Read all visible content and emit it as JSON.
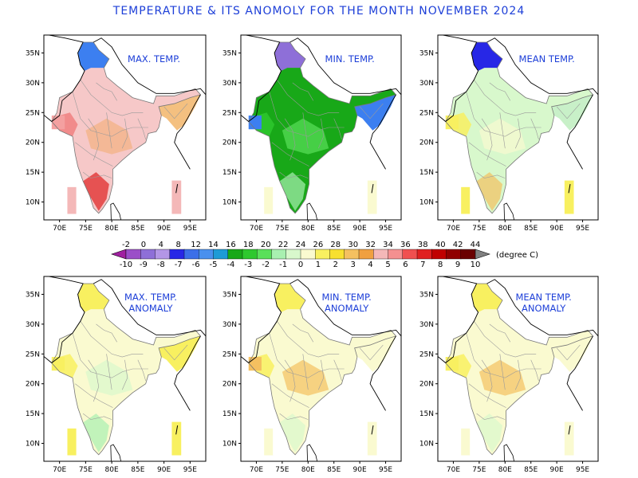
{
  "title": "TEMPERATURE & ITS ANOMOLY FOR THE MONTH NOVEMBER 2024",
  "colorbar": {
    "top_labels": [
      "-2",
      "0",
      "4",
      "8",
      "12",
      "14",
      "16",
      "18",
      "20",
      "22",
      "24",
      "26",
      "28",
      "30",
      "32",
      "34",
      "36",
      "38",
      "40",
      "42",
      "44"
    ],
    "bottom_labels": [
      "-10",
      "-9",
      "-8",
      "-7",
      "-6",
      "-5",
      "-4",
      "-3",
      "-2",
      "-1",
      "0",
      "1",
      "2",
      "3",
      "4",
      "5",
      "6",
      "7",
      "8",
      "9",
      "10"
    ],
    "unit": "(degree C)",
    "colors": [
      "#a020a0",
      "#9b4fc8",
      "#8e6fd8",
      "#b396e6",
      "#2727e6",
      "#3c6fe8",
      "#4a90ee",
      "#1e9bd6",
      "#18a818",
      "#2ec82e",
      "#5ae05a",
      "#a8f0b0",
      "#d8f8cc",
      "#fafad0",
      "#f8f060",
      "#f8e030",
      "#f4c060",
      "#f0a040",
      "#f4b8b8",
      "#f49090",
      "#f05050",
      "#e02020",
      "#c00000",
      "#900000",
      "#6a0000"
    ]
  },
  "x_ticks": [
    "70E",
    "75E",
    "80E",
    "85E",
    "90E",
    "95E"
  ],
  "y_ticks": [
    "35N",
    "30N",
    "25N",
    "20N",
    "15N",
    "10N"
  ],
  "panels": [
    {
      "title_lines": [
        "MAX. TEMP."
      ],
      "base": "#f6c8c8",
      "north": "#3c7ff0",
      "northeast": "#f4c080",
      "accent": "#f4a0a0",
      "spots": [
        "#f4b080",
        "#f08080",
        "#e02020"
      ],
      "islands": "#f4b8b8"
    },
    {
      "title_lines": [
        "MIN. TEMP."
      ],
      "base": "#18a818",
      "north": "#8e6fd8",
      "northeast": "#3c7ff0",
      "accent": "#3c7ff0",
      "spots": [
        "#5ae05a",
        "#2ec82e",
        "#a8f0b0"
      ],
      "islands": "#fafad0"
    },
    {
      "title_lines": [
        "MEAN TEMP."
      ],
      "base": "#d8f8cc",
      "north": "#2727e6",
      "northeast": "#c8f0c8",
      "accent": "#f8f060",
      "spots": [
        "#fafad0",
        "#f8f060",
        "#f4c060"
      ],
      "islands": "#f8f060"
    },
    {
      "title_lines": [
        "MAX. TEMP.",
        "ANOMALY"
      ],
      "base": "#fafad0",
      "north": "#f8f060",
      "northeast": "#f8f060",
      "accent": "#f8f060",
      "spots": [
        "#d8f8cc",
        "#f8f060",
        "#a8f0b0"
      ],
      "islands": "#f8f060"
    },
    {
      "title_lines": [
        "MIN. TEMP.",
        "ANOMALY"
      ],
      "base": "#fafad0",
      "north": "#f8f060",
      "northeast": "#fafad0",
      "accent": "#f4c060",
      "spots": [
        "#f4c060",
        "#f8f060",
        "#d8f8cc"
      ],
      "islands": "#fafad0"
    },
    {
      "title_lines": [
        "MEAN TEMP.",
        "ANOMALY"
      ],
      "base": "#fafad0",
      "north": "#f8f060",
      "northeast": "#fafad0",
      "accent": "#f8f060",
      "spots": [
        "#f4c060",
        "#f8f060",
        "#d8f8cc"
      ],
      "islands": "#fafad0"
    }
  ]
}
